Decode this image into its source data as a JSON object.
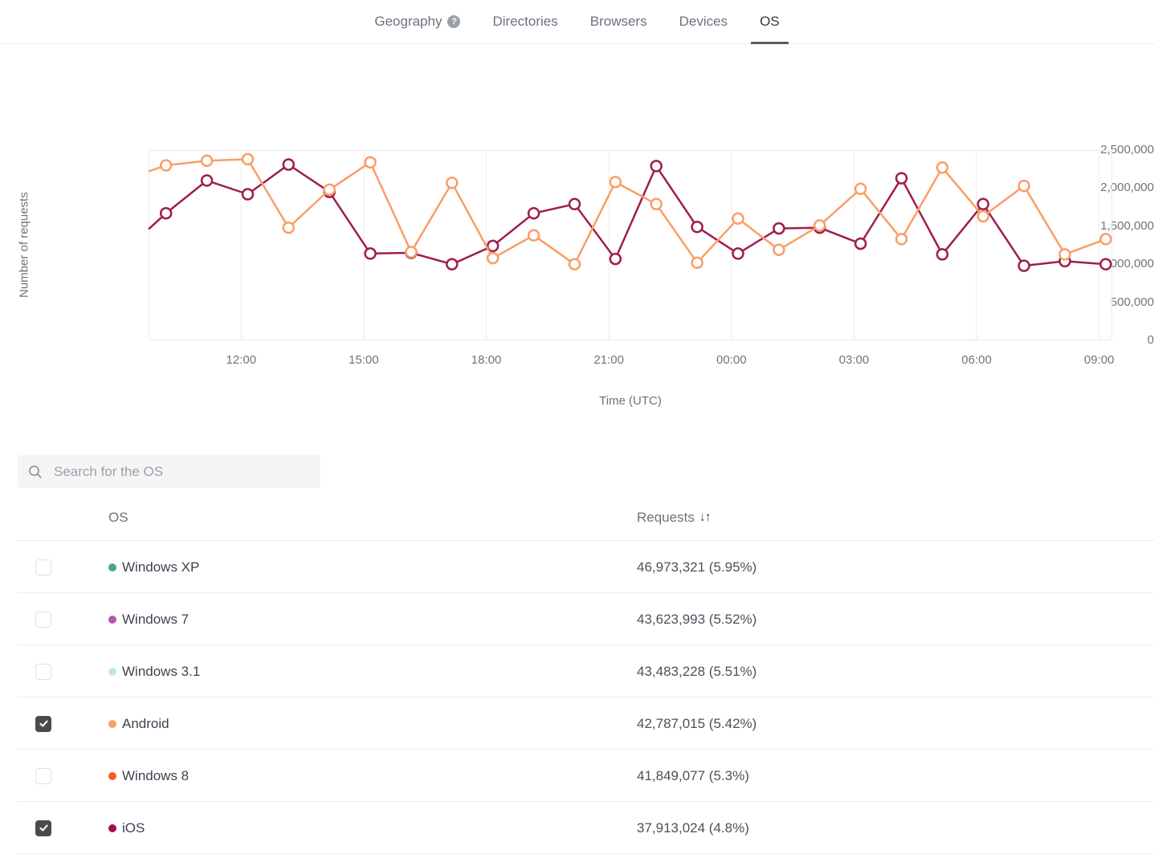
{
  "nav": {
    "tabs": [
      {
        "label": "Geography",
        "help": true,
        "active": false
      },
      {
        "label": "Directories",
        "help": false,
        "active": false
      },
      {
        "label": "Browsers",
        "help": false,
        "active": false
      },
      {
        "label": "Devices",
        "help": false,
        "active": false
      },
      {
        "label": "OS",
        "help": false,
        "active": true
      }
    ],
    "help_icon_glyph": "?"
  },
  "search": {
    "placeholder": "Search for the OS"
  },
  "table": {
    "columns": {
      "os": "OS",
      "requests": "Requests",
      "sort_icon": "↓↑"
    },
    "rows": [
      {
        "os": "Windows XP",
        "dot_color": "#45a890",
        "requests": "46,973,321 (5.95%)",
        "checked": false
      },
      {
        "os": "Windows 7",
        "dot_color": "#b458a8",
        "requests": "43,623,993 (5.52%)",
        "checked": false
      },
      {
        "os": "Windows 3.1",
        "dot_color": "#bfeae2",
        "requests": "43,483,228 (5.51%)",
        "checked": false
      },
      {
        "os": "Android",
        "dot_color": "#f99e66",
        "requests": "42,787,015 (5.42%)",
        "checked": true
      },
      {
        "os": "Windows 8",
        "dot_color": "#f75b22",
        "requests": "41,849,077 (5.3%)",
        "checked": false
      },
      {
        "os": "iOS",
        "dot_color": "#9d1050",
        "requests": "37,913,024 (4.8%)",
        "checked": true
      }
    ]
  },
  "chart_data": {
    "type": "line",
    "title": "",
    "xlabel": "Time (UTC)",
    "ylabel": "Number of requests",
    "ylim": [
      0,
      2500000
    ],
    "grid": "vertical-gridlines-only",
    "legend": "none (series toggled via table checkboxes)",
    "x_tick_labels": [
      "12:00",
      "15:00",
      "18:00",
      "21:00",
      "00:00",
      "03:00",
      "06:00",
      "09:00"
    ],
    "y_tick_labels": [
      "0",
      "500,000",
      "1,000,000",
      "1,500,000",
      "2,000,000",
      "2,500,000"
    ],
    "x": [
      "10:00",
      "11:00",
      "12:00",
      "13:00",
      "14:00",
      "15:00",
      "16:00",
      "17:00",
      "18:00",
      "19:00",
      "20:00",
      "21:00",
      "22:00",
      "23:00",
      "00:00",
      "01:00",
      "02:00",
      "03:00",
      "04:00",
      "05:00",
      "06:00",
      "07:00",
      "08:00",
      "09:00"
    ],
    "series": [
      {
        "name": "Android",
        "color": "#f99e66",
        "marker": "open-circle",
        "edge_start_value": 2220000,
        "values": [
          2300000,
          2360000,
          2380000,
          1480000,
          1980000,
          2340000,
          1160000,
          2070000,
          1080000,
          1380000,
          1000000,
          2080000,
          1790000,
          1020000,
          1600000,
          1190000,
          1510000,
          1990000,
          1330000,
          2270000,
          1630000,
          2030000,
          1130000,
          1330000
        ]
      },
      {
        "name": "iOS",
        "color": "#a01d50",
        "marker": "open-circle",
        "edge_start_value": 1460000,
        "values": [
          1670000,
          2100000,
          1920000,
          2310000,
          1950000,
          1140000,
          1150000,
          1000000,
          1240000,
          1670000,
          1790000,
          1070000,
          2290000,
          1490000,
          1140000,
          1470000,
          1480000,
          1270000,
          2130000,
          1130000,
          1790000,
          980000,
          1040000,
          1000000
        ]
      }
    ]
  }
}
